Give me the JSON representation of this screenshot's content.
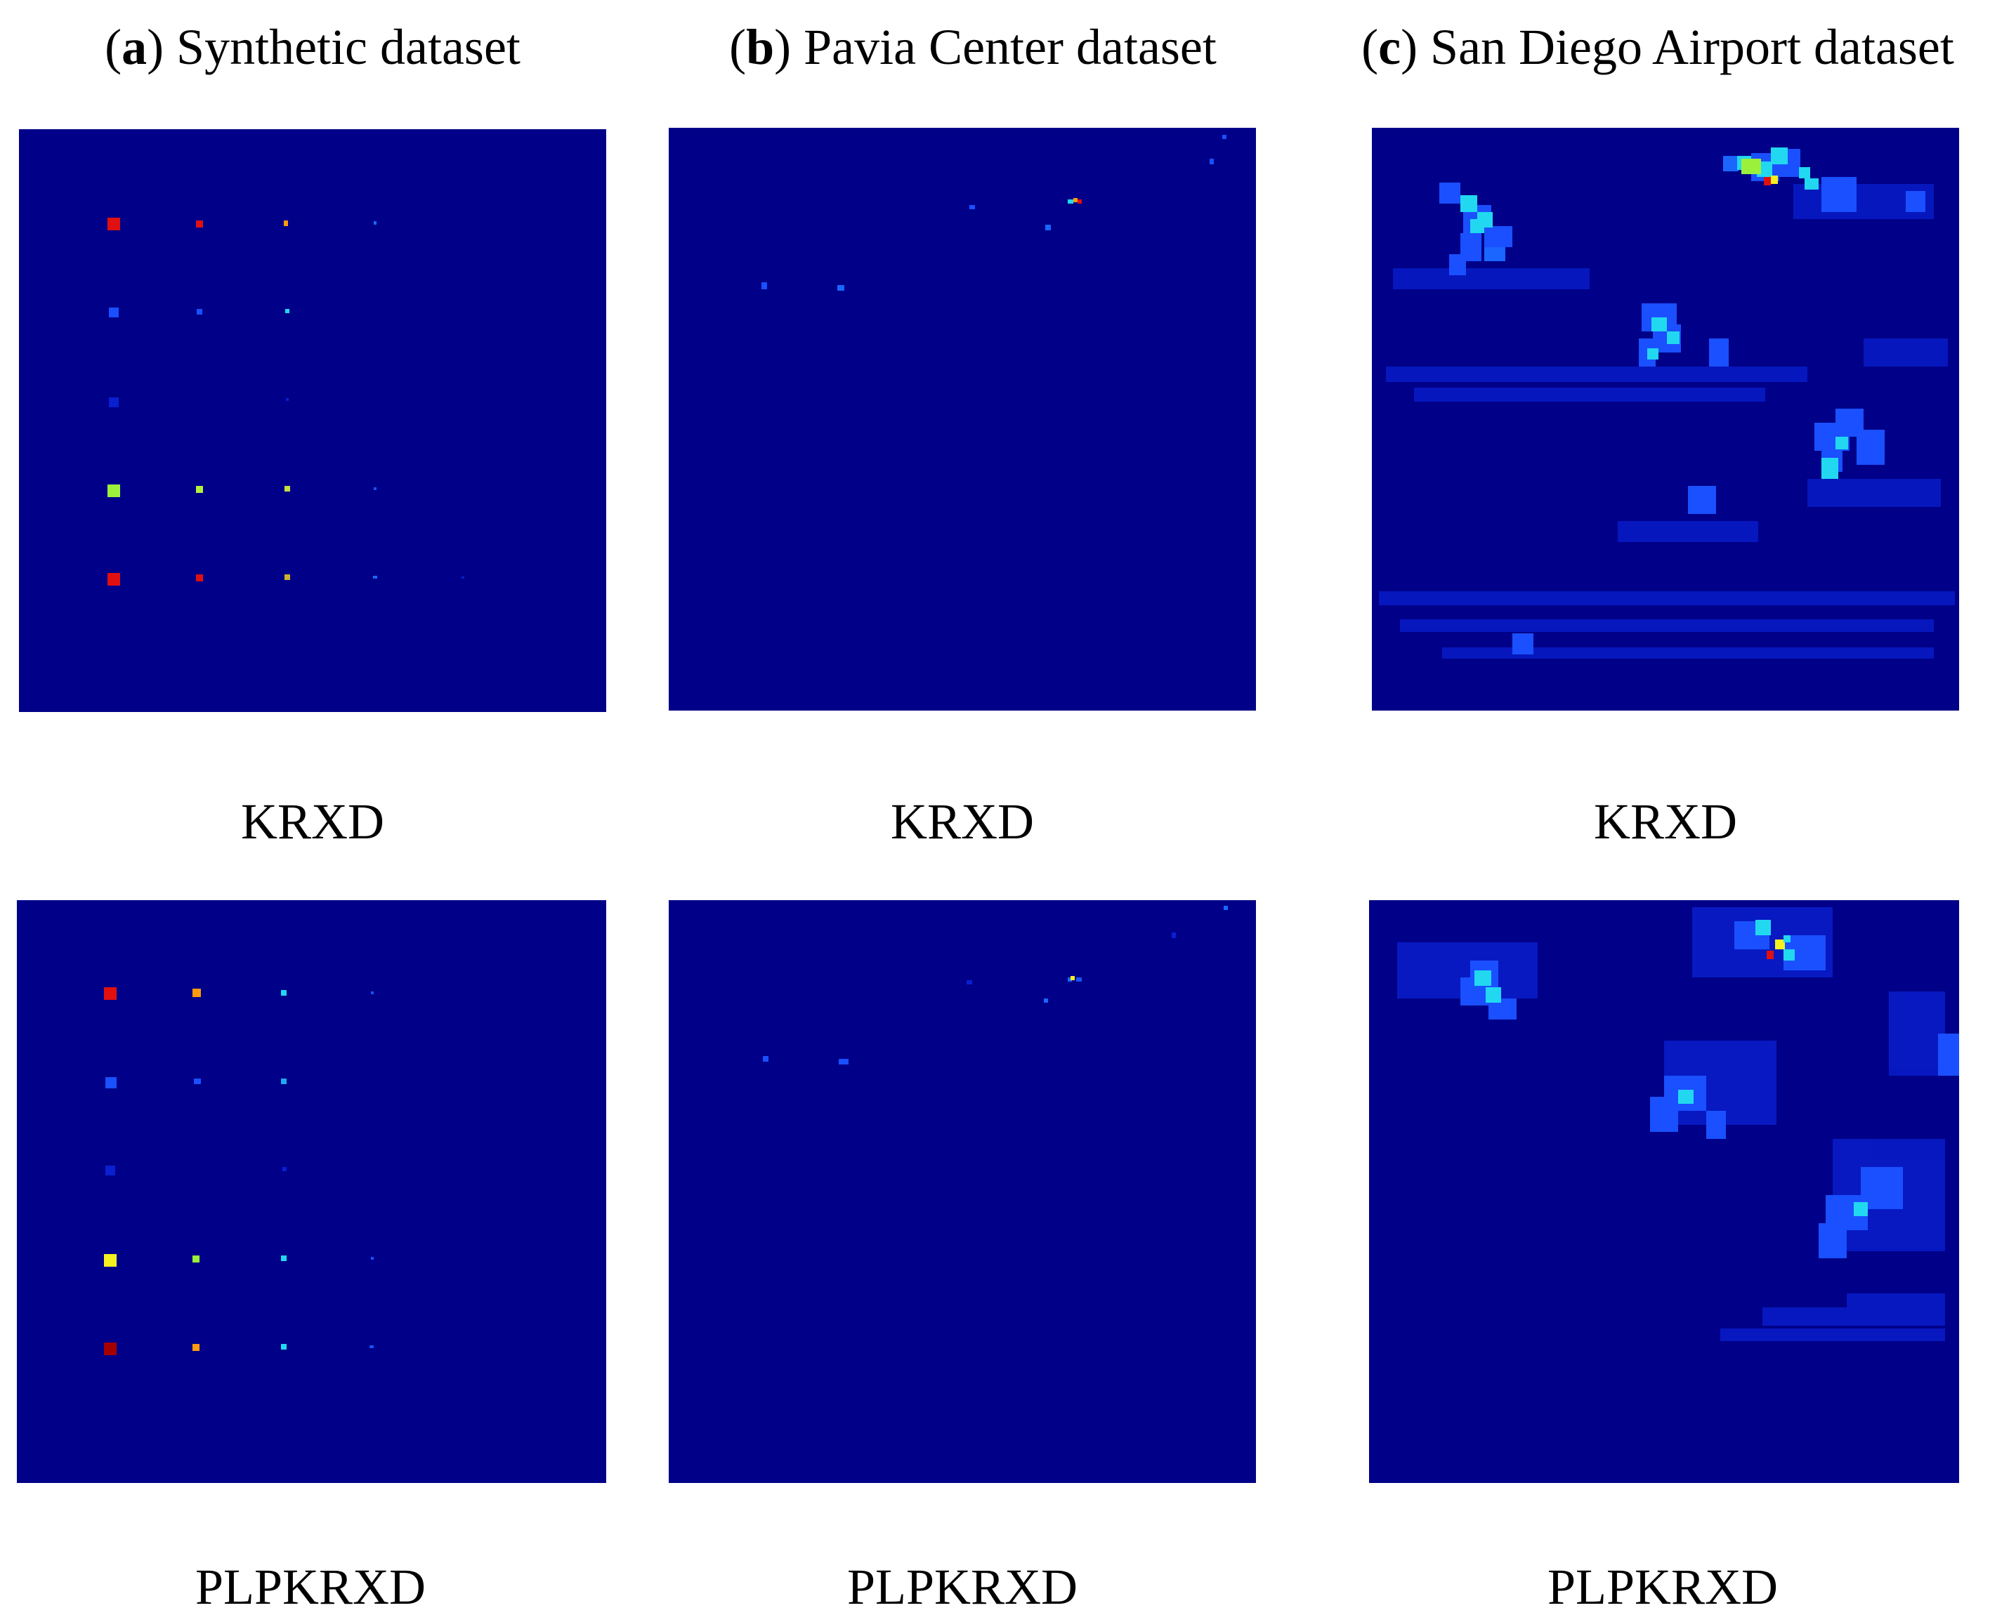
{
  "columns": [
    {
      "letter": "a",
      "title": "Synthetic dataset"
    },
    {
      "letter": "b",
      "title": "Pavia Center dataset"
    },
    {
      "letter": "c",
      "title": "San Diego Airport dataset"
    }
  ],
  "rows": [
    {
      "method": "KRXD"
    },
    {
      "method": "PLPKRXD"
    }
  ],
  "colors": {
    "background": "#000088",
    "low": "#0a1fd0",
    "mid": "#1a66ff",
    "high_cyan": "#22d8f0",
    "high_green": "#9af03a",
    "high_yellow": "#f5f020",
    "high_orange": "#ff9a10",
    "high_red": "#e01010",
    "very_high": "#a50000"
  }
}
